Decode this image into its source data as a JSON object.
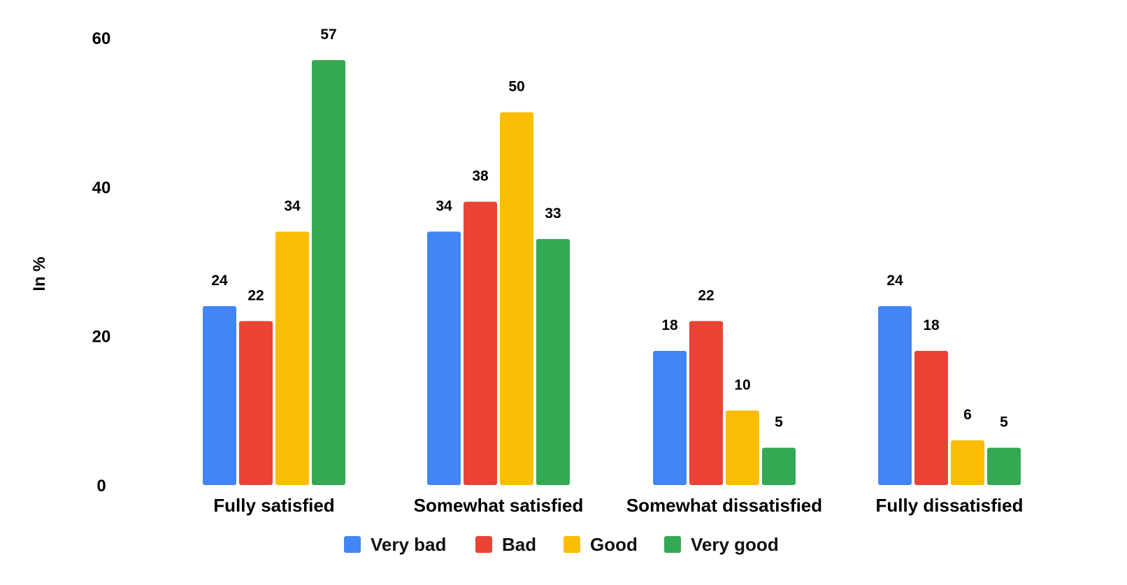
{
  "chart_data": {
    "type": "bar",
    "title": "",
    "xlabel": "",
    "ylabel": "In %",
    "ylim": [
      0,
      60
    ],
    "yticks": [
      0,
      20,
      40,
      60
    ],
    "grid": false,
    "legend_placement": "bottom-center",
    "categories": [
      "Fully satisfied",
      "Somewhat satisfied",
      "Somewhat dissatisfied",
      "Fully dissatisfied"
    ],
    "series": [
      {
        "name": "Very bad",
        "color": "#4285F4",
        "values": [
          24,
          34,
          18,
          24
        ]
      },
      {
        "name": "Bad",
        "color": "#EA4335",
        "values": [
          22,
          38,
          22,
          18
        ]
      },
      {
        "name": "Good",
        "color": "#FBBC04",
        "values": [
          34,
          50,
          10,
          6
        ]
      },
      {
        "name": "Very good",
        "color": "#34A853",
        "values": [
          57,
          33,
          5,
          5
        ]
      }
    ]
  }
}
